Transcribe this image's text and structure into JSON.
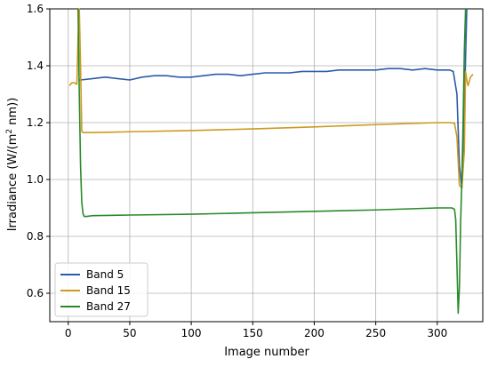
{
  "chart_data": {
    "type": "line",
    "title": "",
    "xlabel": "Image number",
    "ylabel": "Irradiance (W/(m² nm))",
    "xlim": [
      -15,
      337
    ],
    "ylim": [
      0.5,
      1.6
    ],
    "x_ticks": [
      0,
      50,
      100,
      150,
      200,
      250,
      300
    ],
    "y_ticks": [
      0.6,
      0.8,
      1.0,
      1.2,
      1.4,
      1.6
    ],
    "x_tick_labels": [
      "0",
      "50",
      "100",
      "150",
      "200",
      "250",
      "300"
    ],
    "y_tick_labels": [
      "0.6",
      "0.8",
      "1.0",
      "1.2",
      "1.4",
      "1.6"
    ],
    "grid": true,
    "legend_position": "lower-left",
    "series": [
      {
        "name": "Band 5",
        "color": "#2a5ca8",
        "x": [
          9,
          10,
          20,
          30,
          40,
          50,
          60,
          70,
          80,
          90,
          100,
          110,
          120,
          130,
          140,
          150,
          160,
          170,
          180,
          190,
          200,
          210,
          220,
          230,
          240,
          250,
          260,
          270,
          280,
          290,
          300,
          305,
          310,
          313,
          316,
          318,
          320,
          322,
          324
        ],
        "y": [
          1.35,
          1.35,
          1.355,
          1.36,
          1.355,
          1.35,
          1.36,
          1.365,
          1.365,
          1.36,
          1.36,
          1.365,
          1.37,
          1.37,
          1.365,
          1.37,
          1.375,
          1.375,
          1.375,
          1.38,
          1.38,
          1.38,
          1.385,
          1.385,
          1.385,
          1.385,
          1.39,
          1.39,
          1.385,
          1.39,
          1.385,
          1.385,
          1.385,
          1.38,
          1.3,
          1.05,
          0.97,
          1.25,
          1.6
        ]
      },
      {
        "name": "Band 15",
        "color": "#cc9a1f",
        "x": [
          1,
          3,
          5,
          7,
          8,
          9,
          10,
          11,
          12,
          20,
          50,
          100,
          150,
          200,
          250,
          300,
          310,
          314,
          316,
          318,
          320,
          322,
          323,
          324,
          325,
          327,
          329
        ],
        "y": [
          1.33,
          1.34,
          1.34,
          1.335,
          1.5,
          1.6,
          1.4,
          1.17,
          1.165,
          1.165,
          1.168,
          1.172,
          1.178,
          1.185,
          1.193,
          1.2,
          1.2,
          1.198,
          1.15,
          0.98,
          0.97,
          1.1,
          1.38,
          1.35,
          1.33,
          1.36,
          1.37
        ]
      },
      {
        "name": "Band 27",
        "color": "#2a8a2a",
        "x": [
          8,
          9,
          10,
          11,
          12,
          13,
          15,
          20,
          50,
          100,
          150,
          200,
          250,
          300,
          312,
          314,
          315,
          316,
          317,
          318,
          319,
          320,
          321,
          322,
          323
        ],
        "y": [
          1.6,
          1.3,
          1.05,
          0.92,
          0.88,
          0.87,
          0.87,
          0.873,
          0.875,
          0.878,
          0.883,
          0.888,
          0.893,
          0.9,
          0.9,
          0.895,
          0.86,
          0.7,
          0.53,
          0.62,
          0.85,
          1.0,
          1.2,
          1.45,
          1.6
        ]
      }
    ]
  }
}
